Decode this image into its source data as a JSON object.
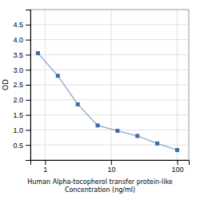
{
  "chart_data": {
    "type": "line",
    "x": [
      0.78,
      1.56,
      3.13,
      6.25,
      12.5,
      25,
      50,
      100
    ],
    "values": [
      3.55,
      2.8,
      1.85,
      1.15,
      0.97,
      0.8,
      0.55,
      0.33
    ],
    "color": "#3a6ea5",
    "marker": "square",
    "xlabel": "Human Alpha-tocopherol transfer protein-like\nConcentration (ng/ml)",
    "ylabel": "OD",
    "log": "x",
    "xlim": [
      0.6,
      150
    ],
    "ylim": [
      0,
      5
    ],
    "xticks": [
      1,
      10,
      100
    ],
    "yticks": [
      0.5,
      {
        "value": 1.0,
        "label": "1.0"
      },
      1.5,
      {
        "value": 2.0,
        "label": "2.0"
      },
      2.5,
      {
        "value": 3.0,
        "label": "3.0"
      },
      3.5,
      {
        "value": 4.0,
        "label": "4.0"
      },
      4.5
    ],
    "grid": true
  }
}
